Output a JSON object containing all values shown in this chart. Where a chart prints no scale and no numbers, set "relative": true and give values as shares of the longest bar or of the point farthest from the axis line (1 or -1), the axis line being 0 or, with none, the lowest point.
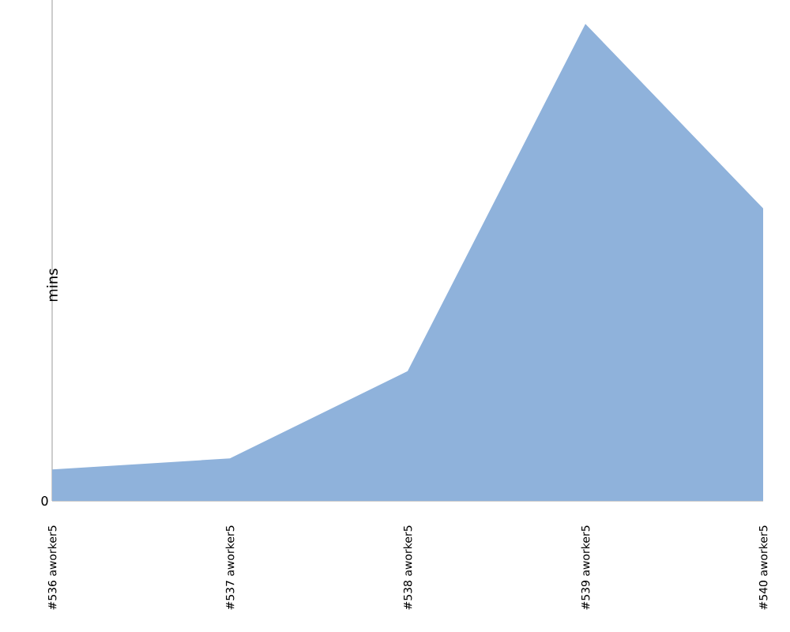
{
  "chart_data": {
    "type": "area",
    "relative": true,
    "ylabel": "mins",
    "categories": [
      "#536 aworker5",
      "#537 aworker5",
      "#538 aworker5",
      "#539 aworker5",
      "#540 aworker5"
    ],
    "color": "#8fb2db",
    "values": [
      0.066,
      0.089,
      0.272,
      1,
      0.613
    ],
    "annotations": [
      "0"
    ],
    "grid": false,
    "legend": false
  }
}
